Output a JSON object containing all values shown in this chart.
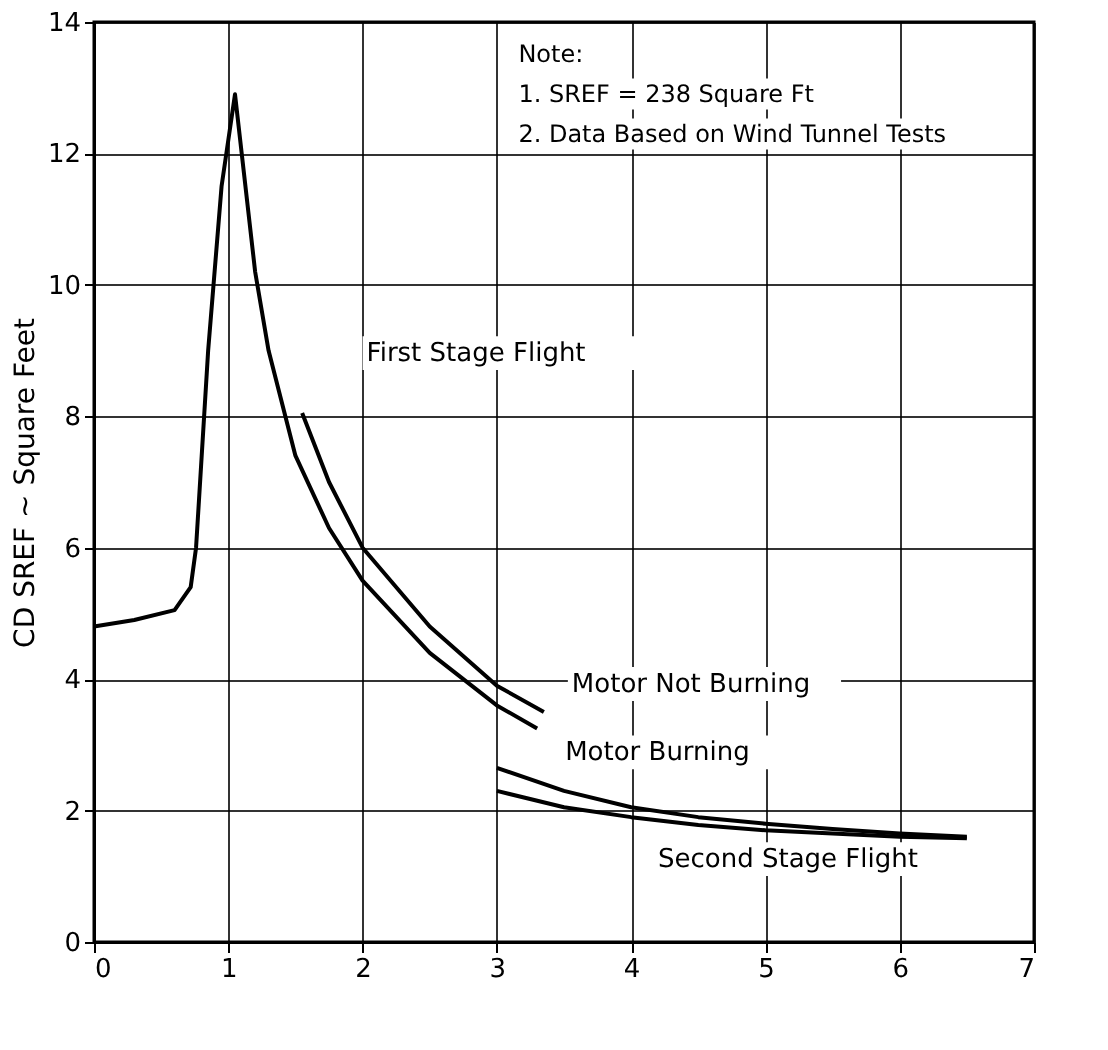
{
  "chart_data": {
    "type": "line",
    "ylabel": "CD SREF ~ Square Feet",
    "xlim": [
      0,
      7
    ],
    "xticks": [
      0,
      1,
      2,
      3,
      4,
      5,
      6,
      7
    ],
    "ylim": [
      0,
      14
    ],
    "yticks": [
      0,
      2,
      4,
      6,
      8,
      10,
      12,
      14
    ],
    "grid": true,
    "legend": false,
    "marker": "none",
    "line_style": "solid",
    "series": [
      {
        "name": "Motor Burning",
        "color": "#000000",
        "x": [
          0,
          0.3,
          0.6,
          0.72,
          0.76,
          0.85,
          0.95,
          1.05,
          1.1,
          1.2,
          1.3,
          1.5,
          1.75,
          2.0,
          2.5,
          3.0,
          3.3
        ],
        "values": [
          4.8,
          4.9,
          5.05,
          5.4,
          6.0,
          9.0,
          11.5,
          12.9,
          12.0,
          10.2,
          9.0,
          7.4,
          6.3,
          5.5,
          4.4,
          3.6,
          3.25
        ]
      },
      {
        "name": "Motor Not Burning",
        "color": "#000000",
        "x": [
          1.55,
          1.75,
          2.0,
          2.5,
          3.0,
          3.35
        ],
        "values": [
          8.05,
          7.0,
          6.0,
          4.8,
          3.9,
          3.5
        ]
      },
      {
        "color": "#000000",
        "x": [
          3.0,
          3.5,
          4.0,
          4.5,
          5.0,
          5.5,
          6.0,
          6.5
        ],
        "values": [
          2.65,
          2.3,
          2.05,
          1.9,
          1.8,
          1.72,
          1.65,
          1.6
        ]
      },
      {
        "color": "#000000",
        "x": [
          3.0,
          3.5,
          4.0,
          4.5,
          5.0,
          5.5,
          6.0,
          6.5
        ],
        "values": [
          2.3,
          2.05,
          1.9,
          1.78,
          1.7,
          1.65,
          1.6,
          1.58
        ]
      }
    ],
    "annotations": [
      "First Stage Flight",
      "Second Stage Flight",
      "Note:",
      "1. SREF = 238 Square Ft",
      "2. Data Based on Wind Tunnel Tests"
    ]
  }
}
